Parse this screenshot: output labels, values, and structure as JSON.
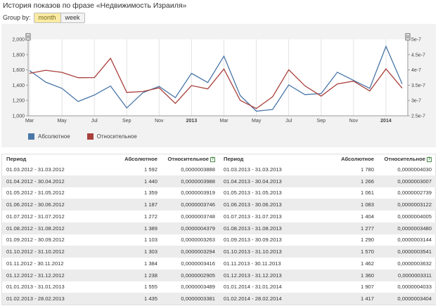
{
  "page": {
    "title": "История показов по фразе «Недвижимость Израиля»"
  },
  "group_by": {
    "label": "Group by:",
    "options": [
      "month",
      "week"
    ],
    "selected": "month"
  },
  "legend": {
    "absolute": "Абсолютное",
    "relative": "Относительное"
  },
  "colors": {
    "absolute": "#4a76a8",
    "relative": "#a9403c",
    "panel_bg": "#f2f2f2",
    "row_alt": "#ececec",
    "toggle_active": "#f9eba3"
  },
  "chart_data": {
    "type": "line",
    "x": [
      "2012-03",
      "2012-04",
      "2012-05",
      "2012-06",
      "2012-07",
      "2012-08",
      "2012-09",
      "2012-10",
      "2012-11",
      "2012-12",
      "2013-01",
      "2013-02",
      "2013-03",
      "2013-04",
      "2013-05",
      "2013-06",
      "2013-07",
      "2013-08",
      "2013-09",
      "2013-10",
      "2013-11",
      "2013-12",
      "2014-01",
      "2014-02"
    ],
    "x_tick_labels": [
      "Mar",
      "May",
      "Jul",
      "Sep",
      "Nov",
      "2013",
      "Mar",
      "May",
      "Jul",
      "Sep",
      "Nov",
      "2014"
    ],
    "series": [
      {
        "name": "Абсолютное",
        "axis": "left",
        "values": [
          1592,
          1440,
          1359,
          1187,
          1272,
          1389,
          1103,
          1303,
          1384,
          1238,
          1555,
          1435,
          1780,
          1266,
          1061,
          1083,
          1404,
          1277,
          1290,
          1570,
          1462,
          1360,
          1907,
          1417
        ]
      },
      {
        "name": "Относительное",
        "axis": "right",
        "values": [
          3.888e-07,
          3.988e-07,
          3.919e-07,
          3.746e-07,
          3.748e-07,
          4.379e-07,
          3.263e-07,
          3.294e-07,
          3.416e-07,
          2.905e-07,
          3.489e-07,
          3.381e-07,
          4.03e-07,
          3.007e-07,
          2.739e-07,
          3.122e-07,
          4.005e-07,
          3.48e-07,
          3.144e-07,
          3.541e-07,
          3.632e-07,
          3.311e-07,
          4.033e-07,
          3.404e-07
        ]
      }
    ],
    "y_left": {
      "ticks": [
        "1,000",
        "1,200",
        "1,400",
        "1,600",
        "1,800",
        "2,000"
      ],
      "ylim": [
        1000,
        2000
      ]
    },
    "y_right": {
      "ticks": [
        "2.5e-7",
        "3e-7",
        "3.5e-7",
        "4e-7",
        "4.5e-7",
        "5e-7"
      ],
      "ylim": [
        2.5e-07,
        5e-07
      ]
    },
    "grid": "vertical"
  },
  "table": {
    "headers": {
      "period": "Период",
      "absolute": "Абсолютное",
      "relative": "Относительное",
      "help": "?"
    },
    "left": [
      {
        "period": "01.03.2012 - 31.03.2012",
        "absolute": "1 592",
        "relative": "0,0000003888"
      },
      {
        "period": "01.04.2012 - 30.04.2012",
        "absolute": "1 440",
        "relative": "0,0000003988"
      },
      {
        "period": "01.05.2012 - 31.05.2012",
        "absolute": "1 359",
        "relative": "0,0000003919"
      },
      {
        "period": "01.06.2012 - 30.06.2012",
        "absolute": "1 187",
        "relative": "0,0000003746"
      },
      {
        "period": "01.07.2012 - 31.07.2012",
        "absolute": "1 272",
        "relative": "0,0000003748"
      },
      {
        "period": "01.08.2012 - 31.08.2012",
        "absolute": "1 389",
        "relative": "0,0000004379"
      },
      {
        "period": "01.09.2012 - 30.09.2012",
        "absolute": "1 103",
        "relative": "0,0000003263"
      },
      {
        "period": "01.10.2012 - 31.10.2012",
        "absolute": "1 303",
        "relative": "0,0000003294"
      },
      {
        "period": "01.11.2012 - 30.11.2012",
        "absolute": "1 384",
        "relative": "0,0000003416"
      },
      {
        "period": "01.12.2012 - 31.12.2012",
        "absolute": "1 238",
        "relative": "0,0000002905"
      },
      {
        "period": "01.01.2013 - 31.01.2013",
        "absolute": "1 555",
        "relative": "0,0000003489"
      },
      {
        "period": "01.02.2013 - 28.02.2013",
        "absolute": "1 435",
        "relative": "0,0000003381"
      }
    ],
    "right": [
      {
        "period": "01.03.2013 - 31.03.2013",
        "absolute": "1 780",
        "relative": "0,0000004030"
      },
      {
        "period": "01.04.2013 - 30.04.2013",
        "absolute": "1 266",
        "relative": "0,0000003007"
      },
      {
        "period": "01.05.2013 - 31.05.2013",
        "absolute": "1 061",
        "relative": "0,0000002739"
      },
      {
        "period": "01.06.2013 - 30.06.2013",
        "absolute": "1 083",
        "relative": "0,0000003122"
      },
      {
        "period": "01.07.2013 - 31.07.2013",
        "absolute": "1 404",
        "relative": "0,0000004005"
      },
      {
        "period": "01.08.2013 - 31.08.2013",
        "absolute": "1 277",
        "relative": "0,0000003480"
      },
      {
        "period": "01.09.2013 - 30.09.2013",
        "absolute": "1 290",
        "relative": "0,0000003144"
      },
      {
        "period": "01.10.2013 - 31.10.2013",
        "absolute": "1 570",
        "relative": "0,0000003541"
      },
      {
        "period": "01.11.2013 - 30.11.2013",
        "absolute": "1 462",
        "relative": "0,0000003632"
      },
      {
        "period": "01.12.2013 - 31.12.2013",
        "absolute": "1 360",
        "relative": "0,0000003311"
      },
      {
        "period": "01.01.2014 - 31.01.2014",
        "absolute": "1 907",
        "relative": "0,0000004033"
      },
      {
        "period": "01.02.2014 - 28.02.2014",
        "absolute": "1 417",
        "relative": "0,0000003404"
      }
    ]
  }
}
